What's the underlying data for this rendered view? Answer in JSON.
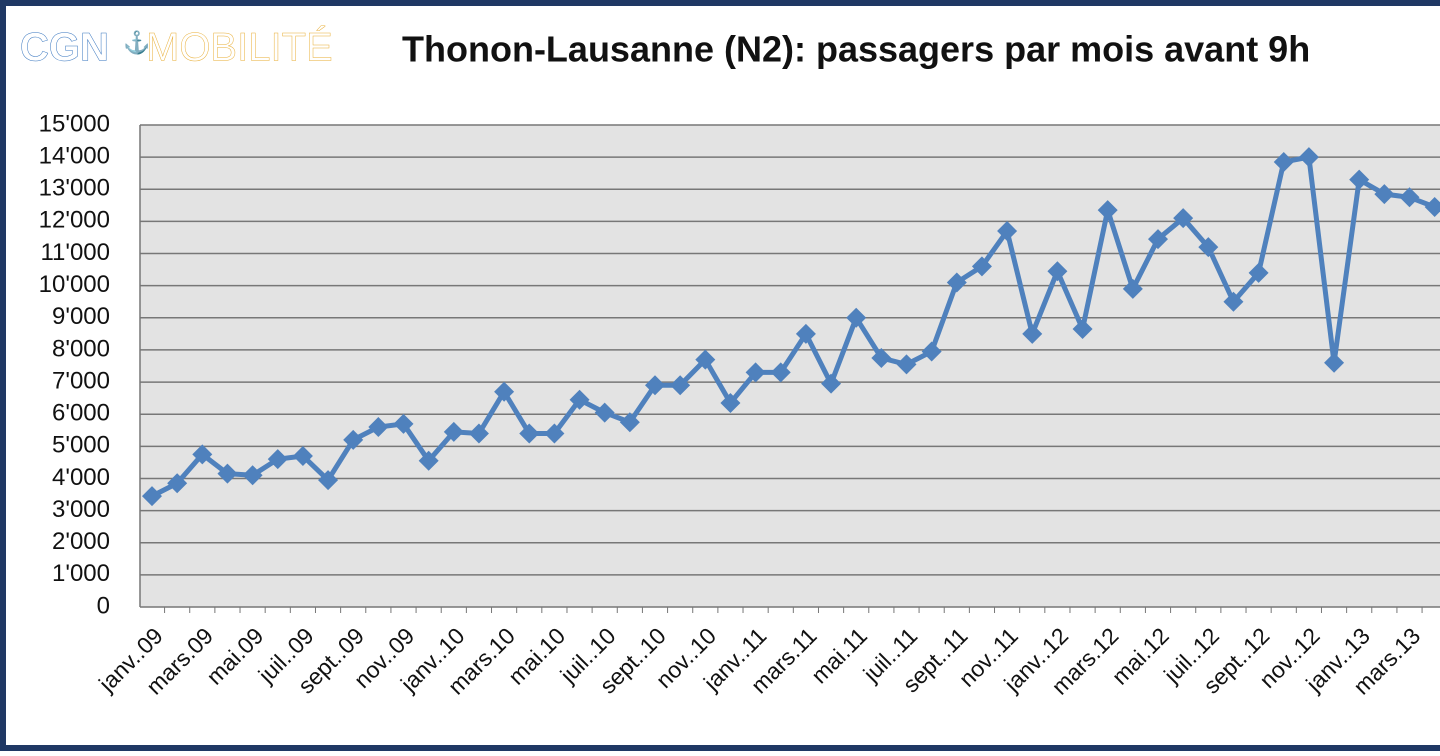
{
  "chart_data": {
    "type": "line",
    "logo": {
      "left": "CGN",
      "right": "MOBILITÉ"
    },
    "title": "Thonon-Lausanne (N2): passagers par mois avant 9h",
    "categories": [
      "janv..09",
      null,
      "mars.09",
      null,
      "mai.09",
      null,
      "juil..09",
      null,
      "sept..09",
      null,
      "nov..09",
      null,
      "janv..10",
      null,
      "mars.10",
      null,
      "mai.10",
      null,
      "juil..10",
      null,
      "sept..10",
      null,
      "nov..10",
      null,
      "janv..11",
      null,
      "mars.11",
      null,
      "mai.11",
      null,
      "juil..11",
      null,
      "sept..11",
      null,
      "nov..11",
      null,
      "janv..12",
      null,
      "mars.12",
      null,
      "mai.12",
      null,
      "juil..12",
      null,
      "sept..12",
      null,
      "nov..12",
      null,
      "janv..13",
      null,
      "mars.13",
      null
    ],
    "series": [
      {
        "color": "#4f81bd",
        "values": [
          3450,
          3850,
          4750,
          4150,
          4100,
          4600,
          4700,
          3950,
          5200,
          5600,
          5700,
          4550,
          5450,
          5400,
          6700,
          5400,
          5400,
          6450,
          6050,
          5750,
          6900,
          6900,
          7700,
          6350,
          7300,
          7300,
          8500,
          6950,
          9000,
          7750,
          7550,
          7950,
          10100,
          10600,
          11700,
          8500,
          10450,
          8650,
          12350,
          9900,
          11450,
          12100,
          11200,
          9500,
          10400,
          13850,
          14000,
          7600,
          13300,
          12850,
          12750,
          12450
        ]
      }
    ],
    "ylim": [
      0,
      15000
    ],
    "yticks": [
      0,
      {
        "value": 1000,
        "label": "1'000"
      },
      {
        "value": 2000,
        "label": "2'000"
      },
      {
        "value": 3000,
        "label": "3'000"
      },
      {
        "value": 4000,
        "label": "4'000"
      },
      {
        "value": 5000,
        "label": "5'000"
      },
      {
        "value": 6000,
        "label": "6'000"
      },
      {
        "value": 7000,
        "label": "7'000"
      },
      {
        "value": 8000,
        "label": "8'000"
      },
      {
        "value": 9000,
        "label": "9'000"
      },
      {
        "value": 10000,
        "label": "10'000"
      },
      {
        "value": 11000,
        "label": "11'000"
      },
      {
        "value": 12000,
        "label": "12'000"
      },
      {
        "value": 13000,
        "label": "13'000"
      },
      {
        "value": 14000,
        "label": "14'000"
      },
      {
        "value": 15000,
        "label": "15'000"
      }
    ],
    "grid": true
  }
}
